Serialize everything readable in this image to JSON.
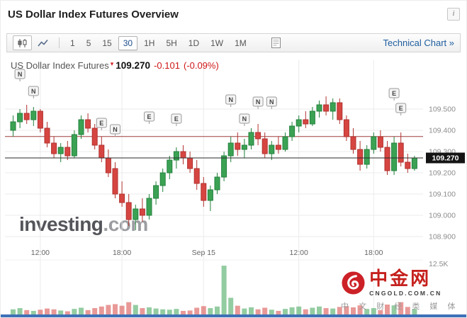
{
  "header": {
    "title": "US Dollar Index Futures Overview",
    "info_icon": "i"
  },
  "toolbar": {
    "chart_type_buttons": [
      {
        "name": "candlestick",
        "selected": true
      },
      {
        "name": "line",
        "selected": false
      }
    ],
    "timeframes": [
      {
        "label": "1"
      },
      {
        "label": "5"
      },
      {
        "label": "15"
      },
      {
        "label": "30",
        "selected": true
      },
      {
        "label": "1H"
      },
      {
        "label": "5H"
      },
      {
        "label": "1D"
      },
      {
        "label": "1W"
      },
      {
        "label": "1M"
      }
    ],
    "technical_chart_label": "Technical Chart »"
  },
  "quote": {
    "name": "US Dollar Index Futures",
    "last": "109.270",
    "change": "-0.101",
    "change_pct": "(-0.09%)"
  },
  "watermark": {
    "brand": "investing",
    "suffix": ".com"
  },
  "logo": {
    "name": "中金网",
    "domain": "CNGOLD.COM.CN",
    "tagline": "中 文 财 经 类 媒 体"
  },
  "chart_data": {
    "type": "candlestick",
    "symbol": "US Dollar Index Futures",
    "interval": "30m",
    "price_tag": "109.270",
    "last_price": 109.27,
    "prev_close_line": 109.371,
    "volume_axis_label": "12.5K",
    "y_axis": {
      "values": [
        109.5,
        109.4,
        109.3,
        109.2,
        109.1,
        109.0,
        108.9
      ],
      "labels": [
        "109.500",
        "109.400",
        "109.300",
        "109.200",
        "109.100",
        "109.000",
        "108.900"
      ]
    },
    "x_axis": [
      {
        "index": 4,
        "label": "12:00"
      },
      {
        "index": 16,
        "label": "18:00"
      },
      {
        "index": 28,
        "label": "Sep 15"
      },
      {
        "index": 42,
        "label": "12:00"
      },
      {
        "index": 53,
        "label": "18:00"
      }
    ],
    "candles": [
      [
        109.4,
        109.47,
        109.37,
        109.44,
        1.3
      ],
      [
        109.44,
        109.5,
        109.41,
        109.48,
        1.6
      ],
      [
        109.48,
        109.52,
        109.43,
        109.45,
        1.1
      ],
      [
        109.45,
        109.51,
        109.42,
        109.49,
        0.9
      ],
      [
        109.49,
        109.5,
        109.39,
        109.41,
        1.2
      ],
      [
        109.41,
        109.44,
        109.32,
        109.34,
        1.5
      ],
      [
        109.34,
        109.37,
        109.27,
        109.29,
        1.3
      ],
      [
        109.29,
        109.34,
        109.25,
        109.32,
        1.0
      ],
      [
        109.32,
        109.35,
        109.26,
        109.28,
        0.8
      ],
      [
        109.28,
        109.4,
        109.27,
        109.38,
        1.4
      ],
      [
        109.38,
        109.47,
        109.36,
        109.45,
        1.7
      ],
      [
        109.45,
        109.48,
        109.39,
        109.41,
        1.1
      ],
      [
        109.41,
        109.43,
        109.31,
        109.33,
        1.6
      ],
      [
        109.33,
        109.37,
        109.25,
        109.27,
        2.0
      ],
      [
        109.27,
        109.31,
        109.18,
        109.2,
        2.4
      ],
      [
        109.22,
        109.25,
        109.08,
        109.1,
        2.6
      ],
      [
        109.1,
        109.16,
        109.04,
        109.06,
        2.2
      ],
      [
        109.06,
        109.1,
        108.95,
        108.98,
        3.1
      ],
      [
        108.98,
        109.05,
        108.93,
        109.03,
        2.4
      ],
      [
        109.03,
        109.08,
        108.97,
        109.0,
        1.6
      ],
      [
        109.0,
        109.1,
        108.98,
        109.08,
        1.8
      ],
      [
        109.08,
        109.16,
        109.05,
        109.14,
        1.5
      ],
      [
        109.14,
        109.22,
        109.11,
        109.2,
        1.3
      ],
      [
        109.2,
        109.28,
        109.17,
        109.26,
        1.2
      ],
      [
        109.26,
        109.32,
        109.22,
        109.3,
        1.4
      ],
      [
        109.3,
        109.33,
        109.24,
        109.27,
        0.9
      ],
      [
        109.27,
        109.3,
        109.2,
        109.22,
        1.0
      ],
      [
        109.22,
        109.26,
        109.12,
        109.15,
        1.7
      ],
      [
        109.15,
        109.18,
        109.04,
        109.07,
        2.1
      ],
      [
        109.07,
        109.14,
        109.02,
        109.12,
        1.6
      ],
      [
        109.12,
        109.2,
        109.1,
        109.18,
        2.0
      ],
      [
        109.18,
        109.3,
        109.16,
        109.28,
        12.3
      ],
      [
        109.28,
        109.37,
        109.25,
        109.34,
        4.2
      ],
      [
        109.34,
        109.39,
        109.28,
        109.31,
        2.2
      ],
      [
        109.31,
        109.36,
        109.27,
        109.33,
        1.5
      ],
      [
        109.33,
        109.41,
        109.31,
        109.39,
        1.8
      ],
      [
        109.39,
        109.43,
        109.33,
        109.36,
        1.3
      ],
      [
        109.36,
        109.39,
        109.27,
        109.29,
        1.7
      ],
      [
        109.29,
        109.35,
        109.26,
        109.33,
        1.2
      ],
      [
        109.33,
        109.37,
        109.29,
        109.31,
        0.9
      ],
      [
        109.31,
        109.39,
        109.3,
        109.37,
        1.4
      ],
      [
        109.37,
        109.44,
        109.35,
        109.42,
        1.8
      ],
      [
        109.42,
        109.47,
        109.39,
        109.45,
        2.0
      ],
      [
        109.45,
        109.49,
        109.41,
        109.43,
        1.3
      ],
      [
        109.43,
        109.51,
        109.42,
        109.49,
        1.7
      ],
      [
        109.49,
        109.54,
        109.46,
        109.52,
        2.0
      ],
      [
        109.52,
        109.56,
        109.47,
        109.49,
        1.6
      ],
      [
        109.49,
        109.55,
        109.45,
        109.53,
        1.5
      ],
      [
        109.53,
        109.55,
        109.43,
        109.45,
        1.9
      ],
      [
        109.45,
        109.47,
        109.35,
        109.37,
        2.1
      ],
      [
        109.37,
        109.41,
        109.29,
        109.31,
        1.8
      ],
      [
        109.31,
        109.35,
        109.21,
        109.24,
        2.3
      ],
      [
        109.24,
        109.33,
        109.22,
        109.31,
        1.4
      ],
      [
        109.31,
        109.39,
        109.29,
        109.37,
        1.6
      ],
      [
        109.37,
        109.4,
        109.3,
        109.32,
        1.1
      ],
      [
        109.32,
        109.35,
        109.19,
        109.21,
        2.5
      ],
      [
        109.21,
        109.37,
        109.19,
        109.34,
        2.3
      ],
      [
        109.34,
        109.39,
        109.23,
        109.25,
        3.1
      ],
      [
        109.25,
        109.29,
        109.2,
        109.22,
        1.9
      ],
      [
        109.22,
        109.28,
        109.21,
        109.27,
        1.4
      ]
    ],
    "markers": [
      {
        "index": 1,
        "price": 109.63,
        "label": "N"
      },
      {
        "index": 3,
        "price": 109.55,
        "label": "N"
      },
      {
        "index": 13,
        "price": 109.4,
        "label": "E"
      },
      {
        "index": 15,
        "price": 109.37,
        "label": "N"
      },
      {
        "index": 20,
        "price": 109.43,
        "label": "E"
      },
      {
        "index": 24,
        "price": 109.42,
        "label": "E"
      },
      {
        "index": 32,
        "price": 109.51,
        "label": "N"
      },
      {
        "index": 34,
        "price": 109.42,
        "label": "N"
      },
      {
        "index": 36,
        "price": 109.5,
        "label": "N"
      },
      {
        "index": 38,
        "price": 109.5,
        "label": "N"
      },
      {
        "index": 56,
        "price": 109.54,
        "label": "E"
      },
      {
        "index": 57,
        "price": 109.47,
        "label": "E"
      }
    ],
    "colors": {
      "up": "#3ba254",
      "up_border": "#23813c",
      "down": "#d64541",
      "down_border": "#b03230",
      "grid": "#ebebeb",
      "axis_text": "#8c8c8c",
      "time_text": "#666666",
      "prev_close_line": "#a03c3c",
      "last_price_line": "#2a2a2a",
      "tag_bg": "#141414",
      "tag_text": "#ffffff",
      "marker_bg": "#f4f4f4",
      "marker_border": "#9a9a9a",
      "marker_text": "#444444"
    }
  }
}
